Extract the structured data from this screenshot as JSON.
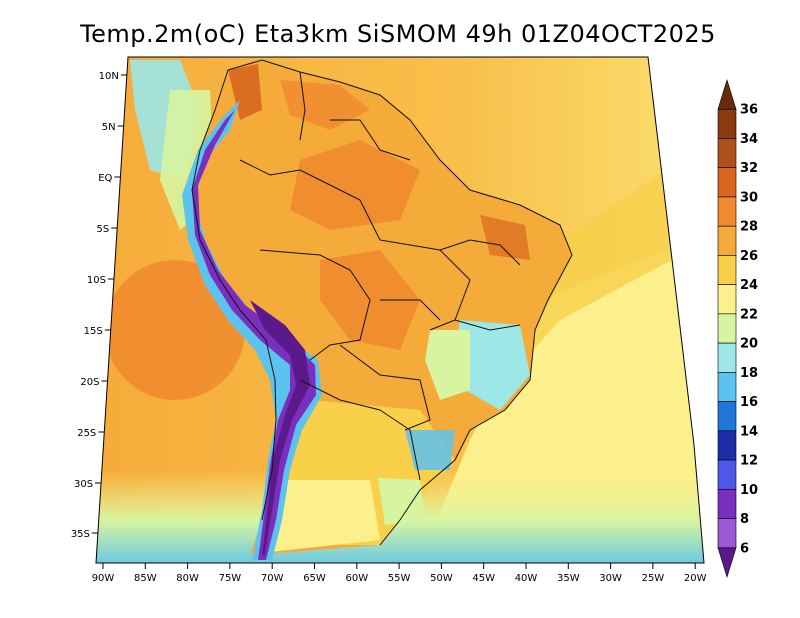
{
  "title": "Temp.2m(oC) Eta3km SiSMOM 49h 01Z04OCT2025",
  "lat_labels": [
    "10N",
    "5N",
    "EQ",
    "5S",
    "10S",
    "15S",
    "20S",
    "25S",
    "30S",
    "35S"
  ],
  "lon_labels": [
    "90W",
    "85W",
    "80W",
    "75W",
    "70W",
    "65W",
    "60W",
    "55W",
    "50W",
    "45W",
    "40W",
    "35W",
    "30W",
    "25W",
    "20W"
  ],
  "colorbar": {
    "labels": [
      "36",
      "34",
      "32",
      "30",
      "28",
      "26",
      "24",
      "22",
      "20",
      "18",
      "16",
      "14",
      "12",
      "10",
      "8",
      "6"
    ],
    "colors": [
      "#6b2a0e",
      "#8c3a10",
      "#b0501a",
      "#d8661f",
      "#f08a2e",
      "#f5ab3a",
      "#f8d04a",
      "#fbf08c",
      "#d7f5a0",
      "#9de7e7",
      "#5cc2ee",
      "#1f78d8",
      "#1b2ea8",
      "#4e58e8",
      "#7a2fbf",
      "#9b59d8",
      "#5a1a8c"
    ]
  },
  "colors": {
    "ocean_warm": "#f5ab3a",
    "ocean_mid": "#f8d04a",
    "ocean_pale": "#fbf08c",
    "land_hot": "#f08a2e",
    "land_warm": "#f5ab3a",
    "andes_cold": "#5a1a8c",
    "andes_cool": "#7a2fbf",
    "sea_cool": "#9de7e7"
  }
}
